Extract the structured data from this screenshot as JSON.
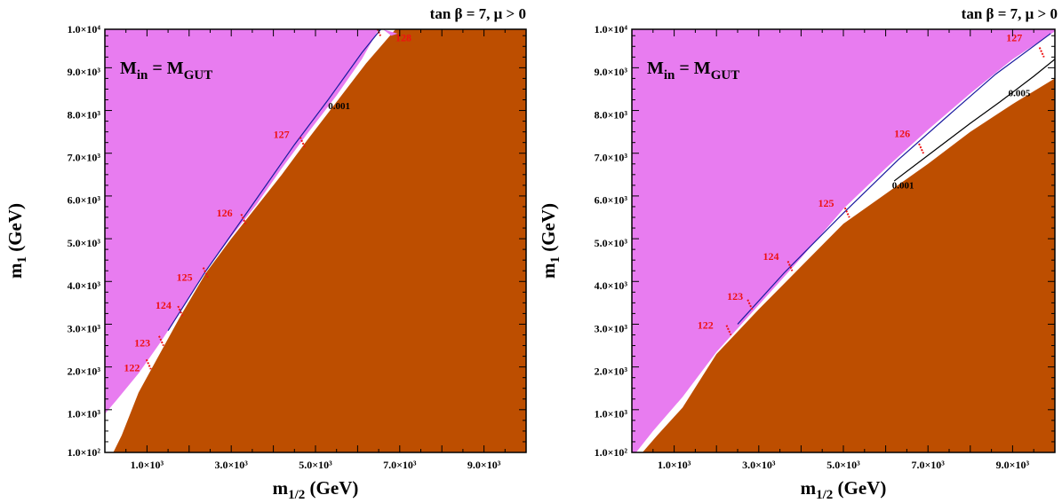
{
  "chart_data": [
    {
      "type": "area",
      "title": "tan β = 7, μ > 0",
      "annotation": "M_in = M_GUT",
      "annotation_main": "M",
      "annotation_sub": "in",
      "annotation_eq": " = M",
      "annotation_sub2": "GUT",
      "xlabel_main": "m",
      "xlabel_sub": "1/2",
      "xlabel_unit": " (GeV)",
      "ylabel_main": "m",
      "ylabel_sub": "1",
      "ylabel_unit": " (GeV)",
      "xlim": [
        0,
        10000
      ],
      "ylim": [
        100,
        10000
      ],
      "x_ticks": [
        {
          "value": 1000,
          "label": "1.0×10³"
        },
        {
          "value": 3000,
          "label": "3.0×10³"
        },
        {
          "value": 5000,
          "label": "5.0×10³"
        },
        {
          "value": 7000,
          "label": "7.0×10³"
        },
        {
          "value": 9000,
          "label": "9.0×10³"
        }
      ],
      "y_ticks": [
        {
          "value": 100,
          "label": "1.0×10²"
        },
        {
          "value": 1000,
          "label": "1.0×10³"
        },
        {
          "value": 2000,
          "label": "2.0×10³"
        },
        {
          "value": 3000,
          "label": "3.0×10³"
        },
        {
          "value": 4000,
          "label": "4.0×10³"
        },
        {
          "value": 5000,
          "label": "5.0×10³"
        },
        {
          "value": 6000,
          "label": "6.0×10³"
        },
        {
          "value": 7000,
          "label": "7.0×10³"
        },
        {
          "value": 8000,
          "label": "8.0×10³"
        },
        {
          "value": 9000,
          "label": "9.0×10³"
        },
        {
          "value": 10000,
          "label": "1.0×10⁴"
        }
      ],
      "colors": {
        "excluded_upper": "#e87cf0",
        "excluded_lower": "#bd4e00",
        "allowed": "#ffffff",
        "higgs": "#ee1111",
        "contour": "#000000",
        "contour_blue": "#1a1aa0"
      },
      "upper_boundary": [
        [
          0,
          1000
        ],
        [
          300,
          1350
        ],
        [
          800,
          1950
        ],
        [
          1300,
          2650
        ],
        [
          1800,
          3400
        ],
        [
          2400,
          4350
        ],
        [
          3000,
          5150
        ],
        [
          3600,
          5900
        ],
        [
          4200,
          6750
        ],
        [
          4800,
          7550
        ],
        [
          5500,
          8450
        ],
        [
          6100,
          9300
        ],
        [
          6500,
          10000
        ]
      ],
      "lower_boundary": [
        [
          200,
          100
        ],
        [
          400,
          500
        ],
        [
          800,
          1500
        ],
        [
          1300,
          2400
        ],
        [
          1800,
          3300
        ],
        [
          2400,
          4300
        ],
        [
          3000,
          5100
        ],
        [
          3600,
          5850
        ],
        [
          4200,
          6600
        ],
        [
          4800,
          7400
        ],
        [
          5500,
          8300
        ],
        [
          6200,
          9200
        ],
        [
          6900,
          10000
        ]
      ],
      "dm_contours": [
        {
          "label": "0.001",
          "points": [
            [
              1500,
              2950
            ],
            [
              2400,
              4350
            ],
            [
              3400,
              5750
            ],
            [
              4500,
              7300
            ],
            [
              5300,
              8350
            ],
            [
              6100,
              9450
            ],
            [
              6550,
              10000
            ]
          ],
          "label_at": [
            5300,
            8130
          ]
        }
      ],
      "higgs_contours": [
        {
          "label": "122",
          "at": [
            1050,
            2150
          ],
          "label_at": [
            450,
            2000
          ]
        },
        {
          "label": "123",
          "at": [
            1350,
            2700
          ],
          "label_at": [
            700,
            2580
          ]
        },
        {
          "label": "124",
          "at": [
            1800,
            3400
          ],
          "label_at": [
            1200,
            3460
          ]
        },
        {
          "label": "125",
          "at": [
            2400,
            4300
          ],
          "label_at": [
            1700,
            4120
          ]
        },
        {
          "label": "126",
          "at": [
            3300,
            5550
          ],
          "label_at": [
            2650,
            5620
          ]
        },
        {
          "label": "127",
          "at": [
            4700,
            7350
          ],
          "label_at": [
            4000,
            7460
          ]
        },
        {
          "label": "128",
          "at": [
            6500,
            9950
          ],
          "label_at": [
            6900,
            9720
          ]
        }
      ],
      "top_band": [
        [
          6600,
          10000
        ],
        [
          6950,
          9900
        ],
        [
          6800,
          9850
        ]
      ]
    },
    {
      "type": "area",
      "title": "tan β = 7, μ > 0",
      "annotation": "M_in = M_GUT",
      "annotation_main": "M",
      "annotation_sub": "in",
      "annotation_eq": " = M",
      "annotation_sub2": "GUT",
      "xlabel_main": "m",
      "xlabel_sub": "1/2",
      "xlabel_unit": " (GeV)",
      "ylabel_main": "m",
      "ylabel_sub": "1",
      "ylabel_unit": " (GeV)",
      "xlim": [
        0,
        10000
      ],
      "ylim": [
        100,
        10000
      ],
      "x_ticks": [
        {
          "value": 1000,
          "label": "1.0×10³"
        },
        {
          "value": 3000,
          "label": "3.0×10³"
        },
        {
          "value": 5000,
          "label": "5.0×10³"
        },
        {
          "value": 7000,
          "label": "7.0×10³"
        },
        {
          "value": 9000,
          "label": "9.0×10³"
        }
      ],
      "y_ticks": [
        {
          "value": 100,
          "label": "1.0×10²"
        },
        {
          "value": 1000,
          "label": "1.0×10³"
        },
        {
          "value": 2000,
          "label": "2.0×10³"
        },
        {
          "value": 3000,
          "label": "3.0×10³"
        },
        {
          "value": 4000,
          "label": "4.0×10³"
        },
        {
          "value": 5000,
          "label": "5.0×10³"
        },
        {
          "value": 6000,
          "label": "6.0×10³"
        },
        {
          "value": 7000,
          "label": "7.0×10³"
        },
        {
          "value": 8000,
          "label": "8.0×10³"
        },
        {
          "value": 9000,
          "label": "9.0×10³"
        },
        {
          "value": 10000,
          "label": "1.0×10⁴"
        }
      ],
      "colors": {
        "excluded_upper": "#e87cf0",
        "excluded_lower": "#bd4e00",
        "allowed": "#ffffff",
        "higgs": "#ee1111",
        "contour": "#000000",
        "contour_blue": "#1a1aa0"
      },
      "upper_boundary": [
        [
          100,
          100
        ],
        [
          500,
          600
        ],
        [
          1200,
          1400
        ],
        [
          2000,
          2450
        ],
        [
          3000,
          3550
        ],
        [
          4000,
          4650
        ],
        [
          5000,
          5800
        ],
        [
          6000,
          6750
        ],
        [
          7000,
          7650
        ],
        [
          8000,
          8500
        ],
        [
          9000,
          9300
        ],
        [
          10000,
          9950
        ]
      ],
      "lower_boundary": [
        [
          250,
          100
        ],
        [
          600,
          500
        ],
        [
          1200,
          1150
        ],
        [
          2000,
          2400
        ],
        [
          3000,
          3450
        ],
        [
          4000,
          4450
        ],
        [
          5000,
          5450
        ],
        [
          6000,
          6150
        ],
        [
          7000,
          6850
        ],
        [
          8000,
          7600
        ],
        [
          9000,
          8250
        ],
        [
          10000,
          8850
        ]
      ],
      "dm_contours": [
        {
          "label": "0.001",
          "points": [
            [
              2500,
              3100
            ],
            [
              3600,
              4300
            ],
            [
              5000,
              5700
            ],
            [
              6300,
              6950
            ],
            [
              7500,
              8000
            ],
            [
              8600,
              8950
            ],
            [
              9900,
              9900
            ]
          ],
          "label_at": [
            6150,
            6270
          ]
        },
        {
          "label": "0.005",
          "points": [
            [
              6200,
              6450
            ],
            [
              7200,
              7200
            ],
            [
              8000,
              7800
            ],
            [
              8700,
              8300
            ],
            [
              9500,
              8900
            ],
            [
              10000,
              9300
            ]
          ],
          "label_at": [
            8900,
            8430
          ]
        }
      ],
      "higgs_contours": [
        {
          "label": "122",
          "at": [
            2300,
            2950
          ],
          "label_at": [
            1550,
            3000
          ]
        },
        {
          "label": "123",
          "at": [
            2800,
            3550
          ],
          "label_at": [
            2250,
            3670
          ]
        },
        {
          "label": "124",
          "at": [
            3750,
            4450
          ],
          "label_at": [
            3100,
            4600
          ]
        },
        {
          "label": "125",
          "at": [
            5100,
            5700
          ],
          "label_at": [
            4400,
            5850
          ]
        },
        {
          "label": "126",
          "at": [
            6850,
            7200
          ],
          "label_at": [
            6200,
            7480
          ]
        },
        {
          "label": "127",
          "at": [
            9700,
            9450
          ],
          "label_at": [
            8850,
            9720
          ]
        }
      ],
      "top_band": []
    }
  ]
}
